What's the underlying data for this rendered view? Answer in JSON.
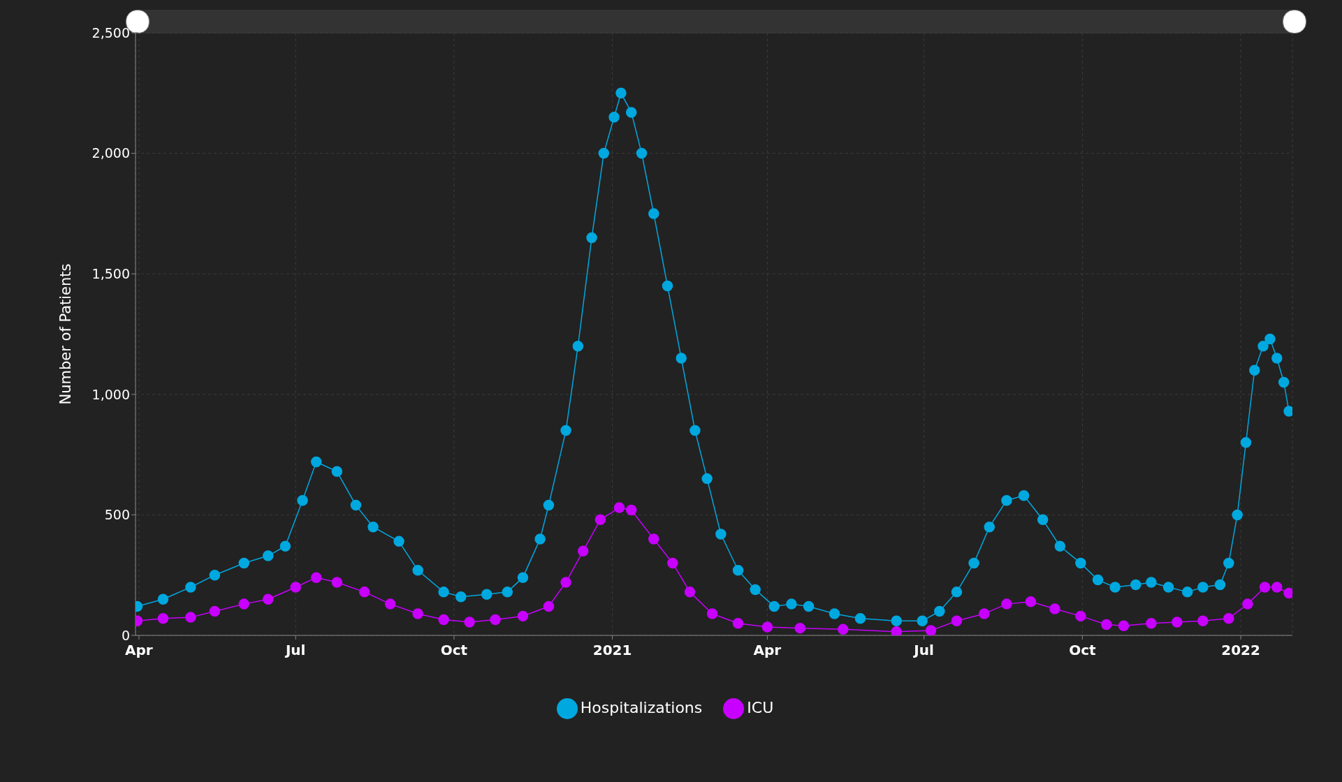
{
  "chart_data": {
    "type": "line",
    "ylabel": "Number of Patients",
    "xlim": [
      "2020-03-30",
      "2022-01-31"
    ],
    "xticks": [
      {
        "value": "2020-04-01",
        "label": "Apr"
      },
      {
        "value": "2020-07-01",
        "label": "Jul"
      },
      {
        "value": "2020-10-01",
        "label": "Oct"
      },
      {
        "value": "2021-01-01",
        "label": "2021"
      },
      {
        "value": "2021-04-01",
        "label": "Apr"
      },
      {
        "value": "2021-07-01",
        "label": "Jul"
      },
      {
        "value": "2021-10-01",
        "label": "Oct"
      },
      {
        "value": "2022-01-01",
        "label": "2022"
      }
    ],
    "ylim": [
      0,
      2500
    ],
    "yticks": [
      0,
      {
        "value": 500,
        "label": "500"
      },
      {
        "value": 1000,
        "label": "1,000"
      },
      {
        "value": 1500,
        "label": "1,500"
      },
      {
        "value": 2000,
        "label": "2,000"
      },
      {
        "value": 2500,
        "label": "2,500"
      }
    ],
    "grid": true,
    "legend": "bottom",
    "marker": "circle",
    "line_style": "solid",
    "series": [
      {
        "name": "Hospitalizations",
        "color": "#00a8e0",
        "x": [
          "2020-03-31",
          "2020-04-15",
          "2020-05-01",
          "2020-05-15",
          "2020-06-01",
          "2020-06-15",
          "2020-06-25",
          "2020-07-05",
          "2020-07-13",
          "2020-07-25",
          "2020-08-05",
          "2020-08-15",
          "2020-08-30",
          "2020-09-10",
          "2020-09-25",
          "2020-10-05",
          "2020-10-20",
          "2020-11-01",
          "2020-11-10",
          "2020-11-20",
          "2020-11-25",
          "2020-12-05",
          "2020-12-12",
          "2020-12-20",
          "2020-12-27",
          "2021-01-02",
          "2021-01-06",
          "2021-01-12",
          "2021-01-18",
          "2021-01-25",
          "2021-02-02",
          "2021-02-10",
          "2021-02-18",
          "2021-02-25",
          "2021-03-05",
          "2021-03-15",
          "2021-03-25",
          "2021-04-05",
          "2021-04-15",
          "2021-04-25",
          "2021-05-10",
          "2021-05-25",
          "2021-06-15",
          "2021-06-30",
          "2021-07-10",
          "2021-07-20",
          "2021-07-30",
          "2021-08-08",
          "2021-08-18",
          "2021-08-28",
          "2021-09-08",
          "2021-09-18",
          "2021-09-30",
          "2021-10-10",
          "2021-10-20",
          "2021-11-01",
          "2021-11-10",
          "2021-11-20",
          "2021-12-01",
          "2021-12-10",
          "2021-12-20",
          "2021-12-25",
          "2021-12-30",
          "2022-01-04",
          "2022-01-09",
          "2022-01-14",
          "2022-01-18",
          "2022-01-22",
          "2022-01-26",
          "2022-01-29"
        ],
        "values": [
          120,
          150,
          200,
          250,
          300,
          330,
          370,
          560,
          720,
          680,
          540,
          450,
          390,
          270,
          180,
          160,
          170,
          180,
          240,
          400,
          540,
          850,
          1200,
          1650,
          2000,
          2150,
          2250,
          2170,
          2000,
          1750,
          1450,
          1150,
          850,
          650,
          420,
          270,
          190,
          120,
          130,
          120,
          90,
          70,
          60,
          60,
          100,
          180,
          300,
          450,
          560,
          580,
          480,
          370,
          300,
          230,
          200,
          210,
          220,
          200,
          180,
          200,
          210,
          300,
          500,
          800,
          1100,
          1200,
          1230,
          1150,
          1050,
          930
        ]
      },
      {
        "name": "ICU",
        "color": "#c800ff",
        "x": [
          "2020-03-31",
          "2020-04-15",
          "2020-05-01",
          "2020-05-15",
          "2020-06-01",
          "2020-06-15",
          "2020-07-01",
          "2020-07-13",
          "2020-07-25",
          "2020-08-10",
          "2020-08-25",
          "2020-09-10",
          "2020-09-25",
          "2020-10-10",
          "2020-10-25",
          "2020-11-10",
          "2020-11-25",
          "2020-12-05",
          "2020-12-15",
          "2020-12-25",
          "2021-01-05",
          "2021-01-12",
          "2021-01-25",
          "2021-02-05",
          "2021-02-15",
          "2021-02-28",
          "2021-03-15",
          "2021-04-01",
          "2021-04-20",
          "2021-05-15",
          "2021-06-15",
          "2021-07-05",
          "2021-07-20",
          "2021-08-05",
          "2021-08-18",
          "2021-09-01",
          "2021-09-15",
          "2021-09-30",
          "2021-10-15",
          "2021-10-25",
          "2021-11-10",
          "2021-11-25",
          "2021-12-10",
          "2021-12-25",
          "2022-01-05",
          "2022-01-15",
          "2022-01-22",
          "2022-01-29"
        ],
        "values": [
          60,
          70,
          75,
          100,
          130,
          150,
          200,
          240,
          220,
          180,
          130,
          90,
          65,
          55,
          65,
          80,
          120,
          220,
          350,
          480,
          530,
          520,
          400,
          300,
          180,
          90,
          50,
          35,
          30,
          25,
          15,
          20,
          60,
          90,
          130,
          140,
          110,
          80,
          45,
          40,
          50,
          55,
          60,
          70,
          130,
          200,
          200,
          175
        ]
      }
    ]
  }
}
